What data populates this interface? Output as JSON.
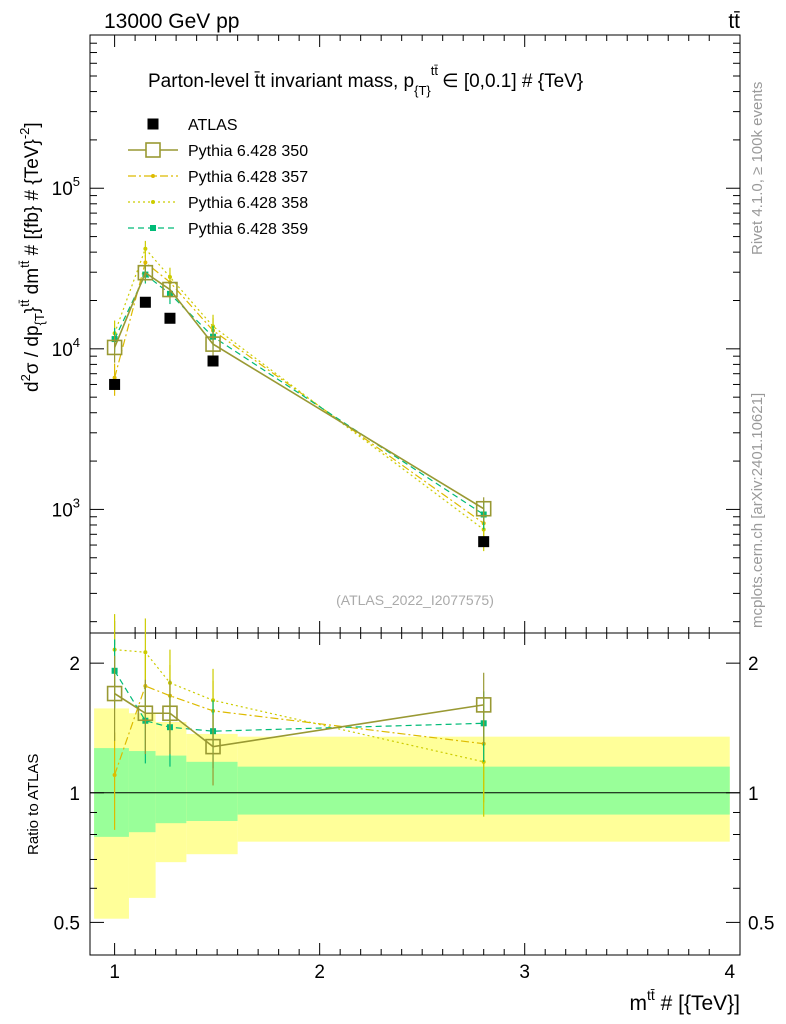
{
  "header": {
    "left": "13000 GeV pp",
    "right": "tt̄"
  },
  "side_labels": {
    "rivet": "Rivet 4.1.0, ≥ 100k events",
    "site": "mcplots.cern.ch [arXiv:2401.10621]"
  },
  "chart_data": [
    {
      "type": "line",
      "title": "Parton-level tt̄ invariant mass, p_{T}^{tt̄} ∈ [0,0.1] # {TeV}",
      "title_text": "Parton-level t̄t invariant mass, p",
      "title_sub": "{T}",
      "title_sup": "tt̄",
      "title_tail": "∈ [0,0.1] # {TeV}",
      "ylabel": "d²σ / dp_{T}^{tt̄} dm^{tt̄} # [{fb} # {TeV}⁻²]",
      "ylabel_main": "d",
      "ylabel_sup2": "2",
      "ylabel_mid": "σ / dp",
      "ylabel_sub": "{T",
      "ylabel_brace": "}",
      "ylabel_sup_tt": "tt̄",
      "ylabel_dm": " dm",
      "ylabel_tail": " # [{fb} # {TeV}",
      "ylabel_tail_sup": "-2",
      "ylabel_close": "]",
      "yscale": "log",
      "xlim": [
        0.88,
        4.05
      ],
      "ylim": [
        170,
        900000
      ],
      "yticks": [
        {
          "value": 1000,
          "base": "10",
          "exp": "3"
        },
        {
          "value": 10000,
          "base": "10",
          "exp": "4"
        },
        {
          "value": 100000,
          "base": "10",
          "exp": "5"
        }
      ],
      "watermark": "(ATLAS_2022_I2077575)",
      "legend": [
        "ATLAS",
        "Pythia 6.428 350",
        "Pythia 6.428 357",
        "Pythia 6.428 358",
        "Pythia 6.428 359"
      ],
      "data": {
        "name": "ATLAS",
        "x": [
          1.0,
          1.15,
          1.27,
          1.48,
          2.8
        ],
        "y": [
          6000,
          19500,
          15500,
          8400,
          630
        ]
      },
      "series": [
        {
          "name": "Pythia 6.428 350",
          "color": "#999933",
          "x": [
            1.0,
            1.15,
            1.27,
            1.48,
            2.8
          ],
          "y": [
            10200,
            29800,
            23400,
            10700,
            1010
          ],
          "yerr": [
            2000,
            3500,
            3000,
            2000,
            180
          ]
        },
        {
          "name": "Pythia 6.428 357",
          "color": "#ddbb00",
          "x": [
            1.0,
            1.15,
            1.27,
            1.48,
            2.8
          ],
          "y": [
            6600,
            34500,
            26000,
            13000,
            820
          ],
          "yerr": [
            1500,
            4000,
            3500,
            2500,
            200
          ]
        },
        {
          "name": "Pythia 6.428 358",
          "color": "#cccc00",
          "x": [
            1.0,
            1.15,
            1.27,
            1.48,
            2.8
          ],
          "y": [
            12500,
            42000,
            28000,
            13800,
            750
          ],
          "yerr": [
            2500,
            5000,
            4000,
            2500,
            200
          ]
        },
        {
          "name": "Pythia 6.428 359",
          "color": "#00bb77",
          "x": [
            1.0,
            1.15,
            1.27,
            1.48,
            2.8
          ],
          "y": [
            11500,
            29000,
            22000,
            11900,
            930
          ],
          "yerr": [
            2000,
            3500,
            3000,
            2000,
            180
          ]
        }
      ]
    },
    {
      "type": "line",
      "ylabel": "Ratio to ATLAS",
      "xlabel": "m^{tt̄} # [{TeV}]",
      "xlabel_main": "m",
      "xlabel_sup": "tt̄",
      "xlabel_tail": " # [{TeV}]",
      "yscale": "log",
      "xlim": [
        0.88,
        4.05
      ],
      "ylim": [
        0.42,
        2.35
      ],
      "xticks": [
        1,
        2,
        3,
        4
      ],
      "yticks": [
        0.5,
        1,
        2
      ],
      "ytick_labels": [
        "0.5",
        "1",
        "2"
      ],
      "bands": {
        "edges": [
          0.9,
          1.07,
          1.2,
          1.35,
          1.6,
          4.0
        ],
        "yellow_low": [
          0.51,
          0.57,
          0.69,
          0.72,
          0.77
        ],
        "yellow_high": [
          1.57,
          1.53,
          1.46,
          1.37,
          1.35
        ],
        "green_low": [
          0.79,
          0.81,
          0.85,
          0.86,
          0.89
        ],
        "green_high": [
          1.27,
          1.25,
          1.22,
          1.18,
          1.15
        ]
      },
      "series": [
        {
          "name": "Pythia 6.428 350",
          "color": "#999933",
          "x": [
            1.0,
            1.15,
            1.27,
            1.48,
            2.8
          ],
          "y": [
            1.7,
            1.53,
            1.53,
            1.28,
            1.6
          ],
          "yerr": [
            0.38,
            0.3,
            0.3,
            0.24,
            0.3
          ]
        },
        {
          "name": "Pythia 6.428 357",
          "color": "#ddbb00",
          "x": [
            1.0,
            1.15,
            1.27,
            1.48,
            2.8
          ],
          "y": [
            1.1,
            1.77,
            1.68,
            1.55,
            1.3
          ],
          "yerr": [
            0.28,
            0.32,
            0.3,
            0.27,
            0.35
          ]
        },
        {
          "name": "Pythia 6.428 358",
          "color": "#cccc00",
          "x": [
            1.0,
            1.15,
            1.27,
            1.48,
            2.8
          ],
          "y": [
            2.15,
            2.12,
            1.8,
            1.64,
            1.18
          ],
          "yerr": [
            0.45,
            0.42,
            0.35,
            0.3,
            0.3
          ]
        },
        {
          "name": "Pythia 6.428 359",
          "color": "#00bb77",
          "x": [
            1.0,
            1.15,
            1.27,
            1.48,
            2.8
          ],
          "y": [
            1.92,
            1.47,
            1.42,
            1.39,
            1.45
          ],
          "yerr": [
            0.35,
            0.3,
            0.27,
            0.25,
            0.27
          ]
        }
      ]
    }
  ]
}
